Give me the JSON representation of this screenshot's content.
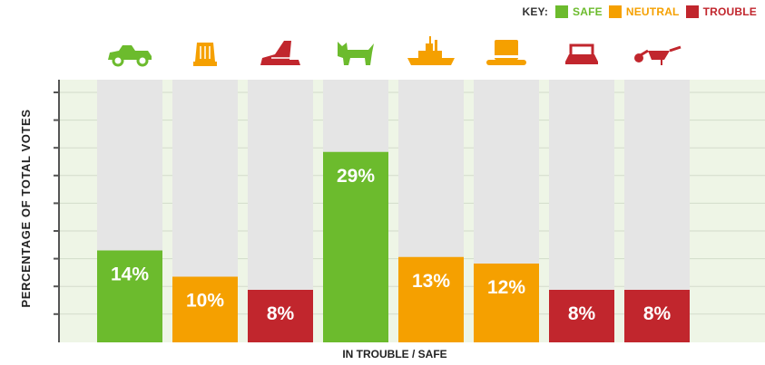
{
  "legend": {
    "title": "KEY:",
    "entries": [
      {
        "name": "SAFE",
        "color": "#6cbb2d"
      },
      {
        "name": "NEUTRAL",
        "color": "#f5a000"
      },
      {
        "name": "TROUBLE",
        "color": "#c1262d"
      }
    ]
  },
  "chart_data": {
    "type": "bar",
    "title": "",
    "xlabel": "IN TROUBLE / SAFE",
    "ylabel": "PERCENTAGE OF TOTAL VOTES",
    "ylim": [
      0,
      40
    ],
    "grid": true,
    "legend_position": "top-right",
    "y_ticks": 9,
    "categories": [
      {
        "icon": "race-car-icon",
        "status": "SAFE"
      },
      {
        "icon": "thimble-icon",
        "status": "NEUTRAL"
      },
      {
        "icon": "boot-icon",
        "status": "TROUBLE"
      },
      {
        "icon": "scottie-dog-icon",
        "status": "SAFE"
      },
      {
        "icon": "battleship-icon",
        "status": "NEUTRAL"
      },
      {
        "icon": "top-hat-icon",
        "status": "NEUTRAL"
      },
      {
        "icon": "iron-icon",
        "status": "TROUBLE"
      },
      {
        "icon": "wheelbarrow-icon",
        "status": "TROUBLE"
      }
    ],
    "values": [
      14,
      10,
      8,
      29,
      13,
      12,
      8,
      8
    ],
    "value_labels": [
      "14%",
      "10%",
      "8%",
      "29%",
      "13%",
      "12%",
      "8%",
      "8%"
    ]
  }
}
